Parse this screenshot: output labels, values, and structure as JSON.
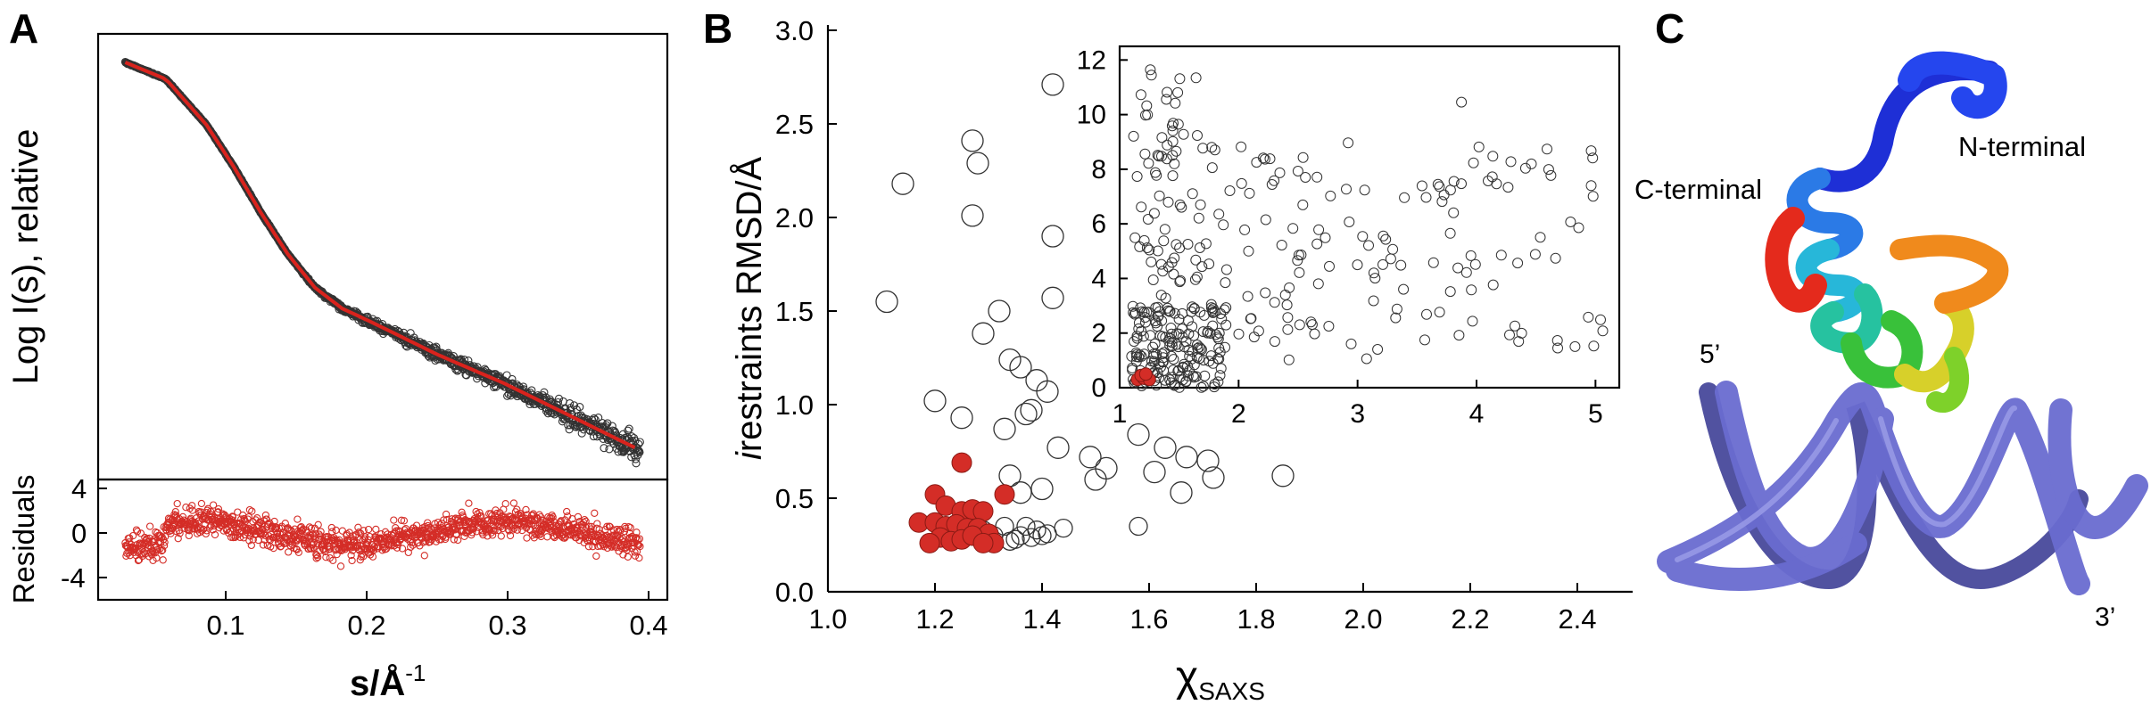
{
  "panels": {
    "a": {
      "letter": "A"
    },
    "b": {
      "letter": "B"
    },
    "c": {
      "letter": "C"
    }
  },
  "colors": {
    "red": "#d42d27",
    "fit_line": "#d9231d",
    "open_marker": "#333333",
    "dna": "#6a6cd0",
    "dna_dark": "#3e3f96"
  },
  "structure_labels": {
    "n_terminal": "N-terminal",
    "c_terminal": "C-terminal",
    "five_prime": "5’",
    "three_prime": "3’"
  },
  "chart_data": [
    {
      "id": "A-top",
      "type": "scatter",
      "ylabel": "Log I(s), relative",
      "xlim": [
        0.0,
        0.42
      ],
      "series": [
        {
          "kind": "fit_line",
          "x": [
            0.02,
            0.05,
            0.08,
            0.1,
            0.12,
            0.14,
            0.16,
            0.18,
            0.2,
            0.25,
            0.3,
            0.35,
            0.4
          ],
          "y": [
            10.0,
            9.6,
            8.5,
            7.5,
            6.4,
            5.4,
            4.6,
            4.1,
            3.8,
            3.0,
            2.3,
            1.5,
            0.7
          ]
        }
      ]
    },
    {
      "id": "A-bottom",
      "type": "scatter",
      "ylabel": "Residuals",
      "xlabel": "s/Å",
      "xlabel_sup": "-1",
      "xlim": [
        0.0,
        0.42
      ],
      "ylim": [
        -5,
        5
      ],
      "x_ticks": [
        "0.1",
        "0.2",
        "0.3",
        "0.4"
      ],
      "y_ticks": [
        "4",
        "0",
        "-4"
      ]
    },
    {
      "id": "B",
      "type": "scatter",
      "ylabel_italic": "i",
      "ylabel": "restraints RMSD/Å",
      "xlabel": "χ",
      "xlabel_sub": "SAXS",
      "xlim": [
        1.0,
        2.5
      ],
      "ylim": [
        0.0,
        3.0
      ],
      "x_ticks": [
        "1.0",
        "1.2",
        "1.4",
        "1.6",
        "1.8",
        "2.0",
        "2.2",
        "2.4"
      ],
      "y_ticks": [
        "0.0",
        "0.5",
        "1.0",
        "1.5",
        "2.0",
        "2.5",
        "3.0"
      ],
      "series": [
        {
          "kind": "open",
          "points": [
            [
              1.11,
              1.55
            ],
            [
              1.14,
              2.18
            ],
            [
              1.27,
              2.41
            ],
            [
              1.28,
              2.29
            ],
            [
              1.27,
              2.01
            ],
            [
              1.42,
              2.71
            ],
            [
              1.42,
              1.9
            ],
            [
              1.42,
              1.57
            ],
            [
              1.29,
              1.38
            ],
            [
              1.32,
              1.5
            ],
            [
              1.34,
              1.24
            ],
            [
              1.36,
              1.2
            ],
            [
              1.37,
              0.95
            ],
            [
              1.38,
              0.97
            ],
            [
              1.39,
              1.13
            ],
            [
              1.41,
              1.07
            ],
            [
              1.2,
              1.02
            ],
            [
              1.25,
              0.93
            ],
            [
              1.33,
              0.87
            ],
            [
              1.34,
              0.62
            ],
            [
              1.36,
              0.53
            ],
            [
              1.4,
              0.55
            ],
            [
              1.43,
              0.77
            ],
            [
              1.49,
              0.72
            ],
            [
              1.5,
              0.6
            ],
            [
              1.52,
              0.66
            ],
            [
              1.58,
              0.84
            ],
            [
              1.61,
              0.64
            ],
            [
              1.63,
              0.77
            ],
            [
              1.66,
              0.53
            ],
            [
              1.67,
              0.72
            ],
            [
              1.71,
              0.7
            ],
            [
              1.72,
              0.61
            ],
            [
              1.85,
              0.62
            ],
            [
              1.58,
              0.35
            ],
            [
              1.29,
              0.33
            ],
            [
              1.31,
              0.3
            ],
            [
              1.33,
              0.35
            ],
            [
              1.35,
              0.28
            ],
            [
              1.36,
              0.3
            ],
            [
              1.37,
              0.35
            ],
            [
              1.39,
              0.33
            ],
            [
              1.4,
              0.3
            ],
            [
              1.41,
              0.31
            ],
            [
              1.34,
              0.27
            ],
            [
              1.3,
              0.27
            ],
            [
              1.38,
              0.29
            ],
            [
              1.44,
              0.34
            ]
          ]
        },
        {
          "kind": "filled_red",
          "points": [
            [
              1.25,
              0.69
            ],
            [
              1.33,
              0.52
            ],
            [
              1.2,
              0.52
            ],
            [
              1.22,
              0.46
            ],
            [
              1.25,
              0.43
            ],
            [
              1.27,
              0.44
            ],
            [
              1.29,
              0.43
            ],
            [
              1.17,
              0.37
            ],
            [
              1.2,
              0.37
            ],
            [
              1.22,
              0.35
            ],
            [
              1.24,
              0.36
            ],
            [
              1.26,
              0.34
            ],
            [
              1.28,
              0.34
            ],
            [
              1.3,
              0.31
            ],
            [
              1.21,
              0.29
            ],
            [
              1.23,
              0.27
            ],
            [
              1.25,
              0.28
            ],
            [
              1.27,
              0.3
            ],
            [
              1.19,
              0.26
            ],
            [
              1.31,
              0.26
            ],
            [
              1.29,
              0.26
            ]
          ]
        }
      ]
    },
    {
      "id": "B-inset",
      "type": "scatter",
      "xlim": [
        1.0,
        5.2
      ],
      "ylim": [
        0,
        12.5
      ],
      "x_ticks": [
        "1",
        "2",
        "3",
        "4",
        "5"
      ],
      "y_ticks": [
        "0",
        "2",
        "4",
        "6",
        "8",
        "10",
        "12"
      ],
      "series": [
        {
          "kind": "open",
          "note": "about 400 open markers spread across x 1.1–5.1, y 0.2–12.2, densest near x 1.2–2.5"
        },
        {
          "kind": "filled_red",
          "points": [
            [
              1.15,
              0.3
            ],
            [
              1.2,
              0.35
            ],
            [
              1.25,
              0.3
            ],
            [
              1.18,
              0.45
            ],
            [
              1.22,
              0.5
            ]
          ]
        }
      ]
    }
  ]
}
